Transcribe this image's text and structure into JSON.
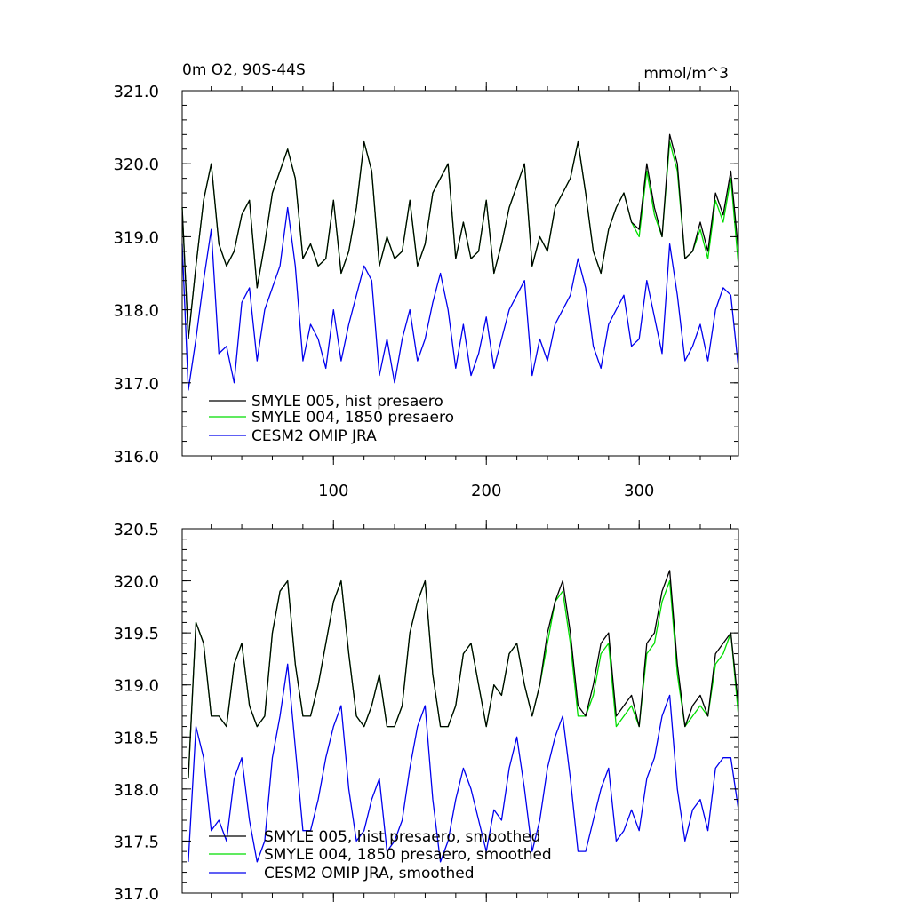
{
  "chart_data": [
    {
      "type": "line",
      "title_left": "0m O2, 90S-44S",
      "title_right": "mmol/m^3",
      "xlim": [
        1,
        365
      ],
      "ylim": [
        316.0,
        321.0
      ],
      "yticks": [
        316.0,
        317.0,
        318.0,
        319.0,
        320.0,
        321.0
      ],
      "ytick_labels": [
        "316.0",
        "317.0",
        "318.0",
        "319.0",
        "320.0",
        "321.0"
      ],
      "xticks": [
        100,
        200,
        300
      ],
      "xtick_labels": [
        "100",
        "200",
        "300"
      ],
      "series": [
        {
          "name": "SMYLE 005, hist presaero",
          "color": "#000000",
          "x": [
            1,
            5,
            10,
            15,
            20,
            25,
            30,
            35,
            40,
            45,
            50,
            55,
            60,
            65,
            70,
            75,
            80,
            85,
            90,
            95,
            100,
            105,
            110,
            115,
            120,
            125,
            130,
            135,
            140,
            145,
            150,
            155,
            160,
            165,
            170,
            175,
            180,
            185,
            190,
            195,
            200,
            205,
            210,
            215,
            220,
            225,
            230,
            235,
            240,
            245,
            250,
            255,
            260,
            265,
            270,
            275,
            280,
            285,
            290,
            295,
            300,
            305,
            310,
            315,
            320,
            325,
            330,
            335,
            340,
            345,
            350,
            355,
            360,
            365
          ],
          "values": [
            319.4,
            317.6,
            318.6,
            319.5,
            320.0,
            318.9,
            318.6,
            318.8,
            319.3,
            319.5,
            318.3,
            318.9,
            319.6,
            319.9,
            320.2,
            319.8,
            318.7,
            318.9,
            318.6,
            318.7,
            319.5,
            318.5,
            318.8,
            319.4,
            320.3,
            319.9,
            318.6,
            319.0,
            318.7,
            318.8,
            319.5,
            318.6,
            318.9,
            319.6,
            319.8,
            320.0,
            318.7,
            319.2,
            318.7,
            318.8,
            319.5,
            318.5,
            318.9,
            319.4,
            319.7,
            320.0,
            318.6,
            319.0,
            318.8,
            319.4,
            319.6,
            319.8,
            320.3,
            319.6,
            318.8,
            318.5,
            319.1,
            319.4,
            319.6,
            319.2,
            319.1,
            320.0,
            319.4,
            319.0,
            320.4,
            320.0,
            318.7,
            318.8,
            319.2,
            318.8,
            319.6,
            319.3,
            319.9,
            318.8
          ]
        },
        {
          "name": "SMYLE 004, 1850 presaero",
          "color": "#00dd00",
          "x": [
            1,
            5,
            10,
            15,
            20,
            25,
            30,
            35,
            40,
            45,
            50,
            55,
            60,
            65,
            70,
            75,
            80,
            85,
            90,
            95,
            100,
            105,
            110,
            115,
            120,
            125,
            130,
            135,
            140,
            145,
            150,
            155,
            160,
            165,
            170,
            175,
            180,
            185,
            190,
            195,
            200,
            205,
            210,
            215,
            220,
            225,
            230,
            235,
            240,
            245,
            250,
            255,
            260,
            265,
            270,
            275,
            280,
            285,
            290,
            295,
            300,
            305,
            310,
            315,
            320,
            325,
            330,
            335,
            340,
            345,
            350,
            355,
            360,
            365
          ],
          "values": [
            319.4,
            317.6,
            318.6,
            319.5,
            320.0,
            318.9,
            318.6,
            318.8,
            319.3,
            319.5,
            318.3,
            318.9,
            319.6,
            319.9,
            320.2,
            319.8,
            318.7,
            318.9,
            318.6,
            318.7,
            319.5,
            318.5,
            318.8,
            319.4,
            320.3,
            319.9,
            318.6,
            319.0,
            318.7,
            318.8,
            319.5,
            318.6,
            318.9,
            319.6,
            319.8,
            320.0,
            318.7,
            319.2,
            318.7,
            318.8,
            319.5,
            318.5,
            318.9,
            319.4,
            319.7,
            320.0,
            318.6,
            319.0,
            318.8,
            319.4,
            319.6,
            319.8,
            320.3,
            319.6,
            318.8,
            318.5,
            319.1,
            319.4,
            319.6,
            319.2,
            319.0,
            319.9,
            319.3,
            319.0,
            320.3,
            319.9,
            318.7,
            318.8,
            319.1,
            318.7,
            319.5,
            319.2,
            319.8,
            318.6
          ]
        },
        {
          "name": "CESM2 OMIP JRA",
          "color": "#0000ee",
          "x": [
            1,
            5,
            10,
            15,
            20,
            25,
            30,
            35,
            40,
            45,
            50,
            55,
            60,
            65,
            70,
            75,
            80,
            85,
            90,
            95,
            100,
            105,
            110,
            115,
            120,
            125,
            130,
            135,
            140,
            145,
            150,
            155,
            160,
            165,
            170,
            175,
            180,
            185,
            190,
            195,
            200,
            205,
            210,
            215,
            220,
            225,
            230,
            235,
            240,
            245,
            250,
            255,
            260,
            265,
            270,
            275,
            280,
            285,
            290,
            295,
            300,
            305,
            310,
            315,
            320,
            325,
            330,
            335,
            340,
            345,
            350,
            355,
            360,
            365
          ],
          "values": [
            318.9,
            316.9,
            317.6,
            318.4,
            319.1,
            317.4,
            317.5,
            317.0,
            318.1,
            318.3,
            317.3,
            318.0,
            318.3,
            318.6,
            319.4,
            318.6,
            317.3,
            317.8,
            317.6,
            317.2,
            318.0,
            317.3,
            317.8,
            318.2,
            318.6,
            318.4,
            317.1,
            317.6,
            317.0,
            317.6,
            318.0,
            317.3,
            317.6,
            318.1,
            318.5,
            318.0,
            317.2,
            317.8,
            317.1,
            317.4,
            317.9,
            317.2,
            317.6,
            318.0,
            318.2,
            318.4,
            317.1,
            317.6,
            317.3,
            317.8,
            318.0,
            318.2,
            318.7,
            318.3,
            317.5,
            317.2,
            317.8,
            318.0,
            318.2,
            317.5,
            317.6,
            318.4,
            317.9,
            317.4,
            318.9,
            318.2,
            317.3,
            317.5,
            317.8,
            317.3,
            318.0,
            318.3,
            318.2,
            317.2
          ]
        }
      ],
      "legend_position": "lower-left"
    },
    {
      "type": "line",
      "xlim": [
        1,
        365
      ],
      "ylim": [
        317.0,
        320.5
      ],
      "yticks": [
        317.0,
        317.5,
        318.0,
        318.5,
        319.0,
        319.5,
        320.0,
        320.5
      ],
      "ytick_labels": [
        "317.0",
        "317.5",
        "318.0",
        "318.5",
        "319.0",
        "319.5",
        "320.0",
        "320.5"
      ],
      "xticks": [
        100,
        200,
        300
      ],
      "xtick_labels": [
        "",
        "",
        ""
      ],
      "series": [
        {
          "name": "SMYLE 005, hist presaero, smoothed",
          "color": "#000000",
          "x": [
            5,
            10,
            15,
            20,
            25,
            30,
            35,
            40,
            45,
            50,
            55,
            60,
            65,
            70,
            75,
            80,
            85,
            90,
            95,
            100,
            105,
            110,
            115,
            120,
            125,
            130,
            135,
            140,
            145,
            150,
            155,
            160,
            165,
            170,
            175,
            180,
            185,
            190,
            195,
            200,
            205,
            210,
            215,
            220,
            225,
            230,
            235,
            240,
            245,
            250,
            255,
            260,
            265,
            270,
            275,
            280,
            285,
            290,
            295,
            300,
            305,
            310,
            315,
            320,
            325,
            330,
            335,
            340,
            345,
            350,
            355,
            360,
            365
          ],
          "values": [
            318.1,
            319.6,
            319.4,
            318.7,
            318.7,
            318.6,
            319.2,
            319.4,
            318.8,
            318.6,
            318.7,
            319.5,
            319.9,
            320.0,
            319.2,
            318.7,
            318.7,
            319.0,
            319.4,
            319.8,
            320.0,
            319.3,
            318.7,
            318.6,
            318.8,
            319.1,
            318.6,
            318.6,
            318.8,
            319.5,
            319.8,
            320.0,
            319.1,
            318.6,
            318.6,
            318.8,
            319.3,
            319.4,
            319.0,
            318.6,
            319.0,
            318.9,
            319.3,
            319.4,
            319.0,
            318.7,
            319.0,
            319.5,
            319.8,
            320.0,
            319.5,
            318.8,
            318.7,
            319.0,
            319.4,
            319.5,
            318.7,
            318.8,
            318.9,
            318.6,
            319.4,
            319.5,
            319.9,
            320.1,
            319.2,
            318.6,
            318.8,
            318.9,
            318.7,
            319.3,
            319.4,
            319.5,
            318.8
          ]
        },
        {
          "name": "SMYLE 004, 1850 presaero, smoothed",
          "color": "#00dd00",
          "x": [
            5,
            10,
            15,
            20,
            25,
            30,
            35,
            40,
            45,
            50,
            55,
            60,
            65,
            70,
            75,
            80,
            85,
            90,
            95,
            100,
            105,
            110,
            115,
            120,
            125,
            130,
            135,
            140,
            145,
            150,
            155,
            160,
            165,
            170,
            175,
            180,
            185,
            190,
            195,
            200,
            205,
            210,
            215,
            220,
            225,
            230,
            235,
            240,
            245,
            250,
            255,
            260,
            265,
            270,
            275,
            280,
            285,
            290,
            295,
            300,
            305,
            310,
            315,
            320,
            325,
            330,
            335,
            340,
            345,
            350,
            355,
            360,
            365
          ],
          "values": [
            318.1,
            319.6,
            319.4,
            318.7,
            318.7,
            318.6,
            319.2,
            319.4,
            318.8,
            318.6,
            318.7,
            319.5,
            319.9,
            320.0,
            319.2,
            318.7,
            318.7,
            319.0,
            319.4,
            319.8,
            320.0,
            319.3,
            318.7,
            318.6,
            318.8,
            319.1,
            318.6,
            318.6,
            318.8,
            319.5,
            319.8,
            320.0,
            319.1,
            318.6,
            318.6,
            318.8,
            319.3,
            319.4,
            319.0,
            318.6,
            319.0,
            318.9,
            319.3,
            319.4,
            319.0,
            318.7,
            319.0,
            319.4,
            319.8,
            319.9,
            319.4,
            318.7,
            318.7,
            318.9,
            319.3,
            319.4,
            318.6,
            318.7,
            318.8,
            318.6,
            319.3,
            319.4,
            319.8,
            320.0,
            319.1,
            318.6,
            318.7,
            318.8,
            318.7,
            319.2,
            319.3,
            319.5,
            318.7
          ]
        },
        {
          "name": "CESM2 OMIP JRA, smoothed",
          "color": "#0000ee",
          "x": [
            5,
            10,
            15,
            20,
            25,
            30,
            35,
            40,
            45,
            50,
            55,
            60,
            65,
            70,
            75,
            80,
            85,
            90,
            95,
            100,
            105,
            110,
            115,
            120,
            125,
            130,
            135,
            140,
            145,
            150,
            155,
            160,
            165,
            170,
            175,
            180,
            185,
            190,
            195,
            200,
            205,
            210,
            215,
            220,
            225,
            230,
            235,
            240,
            245,
            250,
            255,
            260,
            265,
            270,
            275,
            280,
            285,
            290,
            295,
            300,
            305,
            310,
            315,
            320,
            325,
            330,
            335,
            340,
            345,
            350,
            355,
            360,
            365
          ],
          "values": [
            317.3,
            318.6,
            318.3,
            317.6,
            317.7,
            317.5,
            318.1,
            318.3,
            317.7,
            317.3,
            317.5,
            318.3,
            318.7,
            319.2,
            318.4,
            317.6,
            317.6,
            317.9,
            318.3,
            318.6,
            318.8,
            318.0,
            317.5,
            317.6,
            317.9,
            318.1,
            317.4,
            317.5,
            317.7,
            318.2,
            318.6,
            318.8,
            317.9,
            317.3,
            317.5,
            317.9,
            318.2,
            318.0,
            317.7,
            317.4,
            317.8,
            317.7,
            318.2,
            318.5,
            318.0,
            317.4,
            317.7,
            318.2,
            318.5,
            318.7,
            318.1,
            317.4,
            317.4,
            317.7,
            318.0,
            318.2,
            317.5,
            317.6,
            317.8,
            317.6,
            318.1,
            318.3,
            318.7,
            318.9,
            318.0,
            317.5,
            317.8,
            317.9,
            317.6,
            318.2,
            318.3,
            318.3,
            317.8
          ]
        }
      ],
      "legend_position": "lower-left"
    }
  ]
}
